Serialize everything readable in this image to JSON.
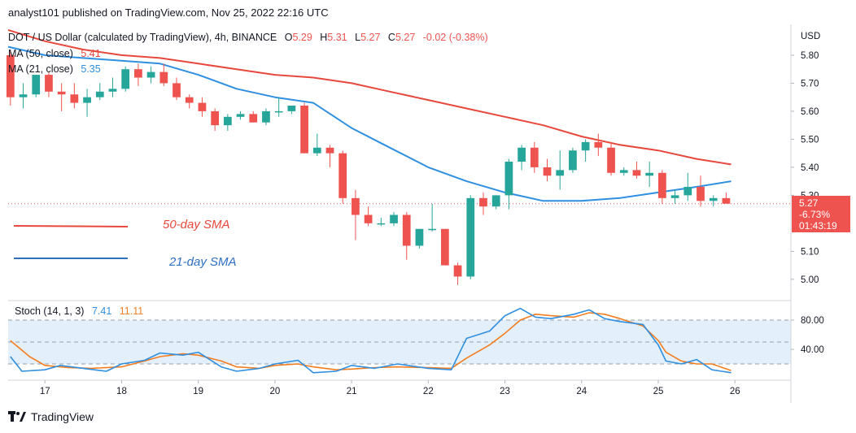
{
  "header": {
    "text": "analyst101 published on TradingView.com, Nov 25, 2022 22:16 UTC"
  },
  "footer": {
    "brand": "TradingView",
    "logo_icon": "tradingview-logo-icon"
  },
  "colors": {
    "up": "#26a69a",
    "down": "#ef5350",
    "ma50": "#e8483c",
    "ma21": "#2f8fe0",
    "stochK": "#2f8fe0",
    "stochD": "#f57c1f",
    "band": "#e3f0fb"
  },
  "chart_data": [
    {
      "type": "candlestick",
      "legend": {
        "symbol_line": "DOT / US Dollar (calculated by TradingView), 4h, BINANCE",
        "ohlc": [
          {
            "label": "O",
            "value": "5.29"
          },
          {
            "label": "H",
            "value": "5.31"
          },
          {
            "label": "L",
            "value": "5.27"
          },
          {
            "label": "C",
            "value": "5.27"
          }
        ],
        "change": "-0.02 (-0.38%)",
        "ma50_label": "MA (50, close)",
        "ma50_value": "5.41",
        "ma21_label": "MA (21, close)",
        "ma21_value": "5.35"
      },
      "currency": "USD",
      "y_ticks": [
        "5.80",
        "5.70",
        "5.60",
        "5.50",
        "5.40",
        "5.30",
        "5.10",
        "5.00"
      ],
      "ylim": [
        4.93,
        5.91
      ],
      "x_ticks": [
        {
          "label": "17",
          "x": 17
        },
        {
          "label": "18",
          "x": 18
        },
        {
          "label": "19",
          "x": 19
        },
        {
          "label": "20",
          "x": 20
        },
        {
          "label": "21",
          "x": 21
        },
        {
          "label": "22",
          "x": 22
        },
        {
          "label": "23",
          "x": 23
        },
        {
          "label": "24",
          "x": 24
        },
        {
          "label": "25",
          "x": 25
        },
        {
          "label": "26",
          "x": 26
        }
      ],
      "xlim": [
        16.52,
        26.73
      ],
      "price_label": {
        "price": "5.27",
        "change": "-6.73%",
        "countdown": "01:43:19"
      },
      "annotations": {
        "sma50": "50-day SMA",
        "sma21": "21-day SMA"
      },
      "candles": [
        [
          5.8,
          5.82,
          5.62,
          5.65
        ],
        [
          5.65,
          5.7,
          5.61,
          5.66
        ],
        [
          5.66,
          5.73,
          5.65,
          5.73
        ],
        [
          5.73,
          5.74,
          5.65,
          5.67
        ],
        [
          5.67,
          5.7,
          5.6,
          5.66
        ],
        [
          5.66,
          5.7,
          5.61,
          5.63
        ],
        [
          5.63,
          5.68,
          5.58,
          5.65
        ],
        [
          5.65,
          5.7,
          5.64,
          5.67
        ],
        [
          5.67,
          5.72,
          5.65,
          5.68
        ],
        [
          5.68,
          5.76,
          5.67,
          5.75
        ],
        [
          5.75,
          5.77,
          5.69,
          5.72
        ],
        [
          5.72,
          5.76,
          5.7,
          5.74
        ],
        [
          5.74,
          5.77,
          5.69,
          5.7
        ],
        [
          5.7,
          5.72,
          5.64,
          5.65
        ],
        [
          5.65,
          5.66,
          5.61,
          5.63
        ],
        [
          5.63,
          5.65,
          5.58,
          5.6
        ],
        [
          5.6,
          5.61,
          5.53,
          5.55
        ],
        [
          5.55,
          5.59,
          5.53,
          5.58
        ],
        [
          5.58,
          5.6,
          5.57,
          5.59
        ],
        [
          5.59,
          5.6,
          5.56,
          5.56
        ],
        [
          5.56,
          5.61,
          5.55,
          5.6
        ],
        [
          5.6,
          5.65,
          5.58,
          5.6
        ],
        [
          5.6,
          5.62,
          5.59,
          5.62
        ],
        [
          5.62,
          5.63,
          5.45,
          5.45
        ],
        [
          5.45,
          5.52,
          5.44,
          5.47
        ],
        [
          5.47,
          5.48,
          5.4,
          5.45
        ],
        [
          5.45,
          5.46,
          5.27,
          5.29
        ],
        [
          5.29,
          5.32,
          5.14,
          5.23
        ],
        [
          5.23,
          5.26,
          5.19,
          5.2
        ],
        [
          5.2,
          5.22,
          5.19,
          5.2
        ],
        [
          5.2,
          5.24,
          5.19,
          5.23
        ],
        [
          5.23,
          5.24,
          5.07,
          5.12
        ],
        [
          5.12,
          5.18,
          5.11,
          5.18
        ],
        [
          5.18,
          5.27,
          5.17,
          5.18
        ],
        [
          5.18,
          5.18,
          5.05,
          5.05
        ],
        [
          5.05,
          5.06,
          4.98,
          5.01
        ],
        [
          5.01,
          5.3,
          5.0,
          5.29
        ],
        [
          5.29,
          5.31,
          5.23,
          5.26
        ],
        [
          5.26,
          5.3,
          5.25,
          5.3
        ],
        [
          5.3,
          5.43,
          5.25,
          5.42
        ],
        [
          5.42,
          5.48,
          5.39,
          5.47
        ],
        [
          5.47,
          5.49,
          5.38,
          5.4
        ],
        [
          5.4,
          5.43,
          5.35,
          5.37
        ],
        [
          5.37,
          5.46,
          5.32,
          5.39
        ],
        [
          5.39,
          5.47,
          5.38,
          5.46
        ],
        [
          5.46,
          5.5,
          5.42,
          5.49
        ],
        [
          5.49,
          5.52,
          5.44,
          5.47
        ],
        [
          5.47,
          5.49,
          5.37,
          5.38
        ],
        [
          5.38,
          5.4,
          5.37,
          5.39
        ],
        [
          5.39,
          5.42,
          5.36,
          5.37
        ],
        [
          5.37,
          5.42,
          5.33,
          5.38
        ],
        [
          5.38,
          5.39,
          5.27,
          5.29
        ],
        [
          5.29,
          5.32,
          5.27,
          5.3
        ],
        [
          5.3,
          5.38,
          5.28,
          5.33
        ],
        [
          5.33,
          5.37,
          5.26,
          5.28
        ],
        [
          5.28,
          5.3,
          5.26,
          5.29
        ],
        [
          5.29,
          5.31,
          5.27,
          5.27
        ]
      ],
      "candle_x0": 16.55,
      "candle_step": 0.1667,
      "ma50": [
        [
          16.52,
          5.89
        ],
        [
          17.0,
          5.85
        ],
        [
          17.5,
          5.82
        ],
        [
          18.0,
          5.8
        ],
        [
          18.5,
          5.79
        ],
        [
          19.0,
          5.77
        ],
        [
          19.5,
          5.75
        ],
        [
          20.0,
          5.73
        ],
        [
          20.5,
          5.72
        ],
        [
          21.0,
          5.7
        ],
        [
          21.5,
          5.67
        ],
        [
          22.0,
          5.64
        ],
        [
          22.5,
          5.61
        ],
        [
          23.0,
          5.58
        ],
        [
          23.5,
          5.55
        ],
        [
          24.0,
          5.51
        ],
        [
          24.5,
          5.48
        ],
        [
          25.0,
          5.46
        ],
        [
          25.5,
          5.43
        ],
        [
          25.95,
          5.41
        ]
      ],
      "ma21": [
        [
          16.52,
          5.83
        ],
        [
          17.0,
          5.8
        ],
        [
          17.5,
          5.79
        ],
        [
          18.0,
          5.78
        ],
        [
          18.5,
          5.77
        ],
        [
          19.0,
          5.73
        ],
        [
          19.5,
          5.68
        ],
        [
          20.0,
          5.65
        ],
        [
          20.5,
          5.63
        ],
        [
          21.0,
          5.54
        ],
        [
          21.5,
          5.47
        ],
        [
          22.0,
          5.4
        ],
        [
          22.5,
          5.35
        ],
        [
          23.0,
          5.31
        ],
        [
          23.5,
          5.28
        ],
        [
          24.0,
          5.28
        ],
        [
          24.5,
          5.29
        ],
        [
          25.0,
          5.31
        ],
        [
          25.5,
          5.33
        ],
        [
          25.95,
          5.35
        ]
      ]
    },
    {
      "type": "line",
      "legend": {
        "label": "Stoch (14, 1, 3)",
        "k_value": "7.41",
        "d_value": "11.11"
      },
      "y_ticks": [
        "80.00",
        "40.00"
      ],
      "ylim": [
        0,
        100
      ],
      "band": [
        20,
        80
      ],
      "k": [
        [
          16.55,
          30
        ],
        [
          16.7,
          10
        ],
        [
          17.0,
          12
        ],
        [
          17.2,
          18
        ],
        [
          17.5,
          14
        ],
        [
          17.8,
          10
        ],
        [
          18.0,
          20
        ],
        [
          18.3,
          25
        ],
        [
          18.5,
          35
        ],
        [
          18.8,
          32
        ],
        [
          19.0,
          36
        ],
        [
          19.3,
          16
        ],
        [
          19.5,
          10
        ],
        [
          19.8,
          14
        ],
        [
          20.0,
          20
        ],
        [
          20.3,
          25
        ],
        [
          20.5,
          8
        ],
        [
          20.8,
          10
        ],
        [
          21.0,
          18
        ],
        [
          21.3,
          14
        ],
        [
          21.6,
          20
        ],
        [
          22.0,
          14
        ],
        [
          22.3,
          12
        ],
        [
          22.5,
          55
        ],
        [
          22.8,
          65
        ],
        [
          23.0,
          86
        ],
        [
          23.2,
          96
        ],
        [
          23.4,
          84
        ],
        [
          23.6,
          82
        ],
        [
          23.9,
          88
        ],
        [
          24.1,
          94
        ],
        [
          24.3,
          82
        ],
        [
          24.5,
          78
        ],
        [
          24.8,
          74
        ],
        [
          25.0,
          46
        ],
        [
          25.1,
          24
        ],
        [
          25.3,
          20
        ],
        [
          25.5,
          26
        ],
        [
          25.7,
          12
        ],
        [
          25.95,
          8
        ]
      ],
      "d": [
        [
          16.55,
          52
        ],
        [
          16.8,
          30
        ],
        [
          17.0,
          18
        ],
        [
          17.3,
          15
        ],
        [
          17.6,
          14
        ],
        [
          18.0,
          16
        ],
        [
          18.3,
          24
        ],
        [
          18.5,
          30
        ],
        [
          18.8,
          34
        ],
        [
          19.0,
          32
        ],
        [
          19.3,
          24
        ],
        [
          19.5,
          16
        ],
        [
          19.8,
          14
        ],
        [
          20.0,
          18
        ],
        [
          20.3,
          20
        ],
        [
          20.5,
          16
        ],
        [
          20.8,
          12
        ],
        [
          21.0,
          13
        ],
        [
          21.3,
          15
        ],
        [
          21.6,
          16
        ],
        [
          22.0,
          15
        ],
        [
          22.3,
          14
        ],
        [
          22.5,
          28
        ],
        [
          22.8,
          46
        ],
        [
          23.0,
          62
        ],
        [
          23.2,
          80
        ],
        [
          23.4,
          88
        ],
        [
          23.6,
          86
        ],
        [
          23.9,
          84
        ],
        [
          24.1,
          90
        ],
        [
          24.3,
          88
        ],
        [
          24.5,
          82
        ],
        [
          24.8,
          72
        ],
        [
          25.0,
          52
        ],
        [
          25.1,
          36
        ],
        [
          25.3,
          24
        ],
        [
          25.5,
          20
        ],
        [
          25.7,
          20
        ],
        [
          25.95,
          11
        ]
      ]
    }
  ]
}
